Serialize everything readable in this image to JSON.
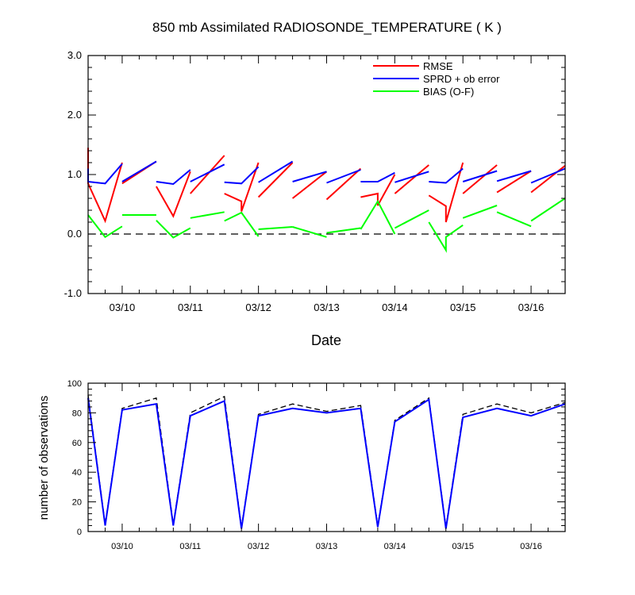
{
  "title": "850 mb Assimilated RADIOSONDE_TEMPERATURE ( K )",
  "chart_data": [
    {
      "type": "line",
      "xlabel": "Date",
      "ylabel": "",
      "xlim": [
        9.5,
        16.5
      ],
      "ylim": [
        -1.0,
        3.0
      ],
      "x_ticks": [
        10,
        11,
        12,
        13,
        14,
        15,
        16
      ],
      "x_tick_labels": [
        "03/10",
        "03/11",
        "03/12",
        "03/13",
        "03/14",
        "03/15",
        "03/16"
      ],
      "y_ticks": [
        -1.0,
        0.0,
        1.0,
        2.0,
        3.0
      ],
      "y_tick_labels": [
        "-1.0",
        "0.0",
        "1.0",
        "2.0",
        "3.0"
      ],
      "grid": false,
      "legend_position": "top-right",
      "reference_line": {
        "y": 0.0,
        "style": "dashed",
        "color": "#000000"
      },
      "series": [
        {
          "name": "RMSE",
          "color": "#ff0000",
          "segments": [
            [
              [
                9.5,
                1.45
              ],
              [
                9.5,
                0.85
              ],
              [
                9.75,
                0.22
              ],
              [
                10.0,
                1.2
              ]
            ],
            [
              [
                10.0,
                0.85
              ],
              [
                10.5,
                1.22
              ]
            ],
            [
              [
                10.5,
                0.8
              ],
              [
                10.75,
                0.3
              ],
              [
                11.0,
                1.05
              ]
            ],
            [
              [
                11.0,
                0.68
              ],
              [
                11.5,
                1.32
              ]
            ],
            [
              [
                11.5,
                0.68
              ],
              [
                11.75,
                0.55
              ],
              [
                11.75,
                0.38
              ],
              [
                12.0,
                1.2
              ]
            ],
            [
              [
                12.0,
                0.62
              ],
              [
                12.5,
                1.2
              ]
            ],
            [
              [
                12.5,
                0.6
              ],
              [
                13.0,
                1.05
              ]
            ],
            [
              [
                13.0,
                0.58
              ],
              [
                13.5,
                1.1
              ]
            ],
            [
              [
                13.5,
                0.62
              ],
              [
                13.75,
                0.68
              ],
              [
                13.75,
                0.48
              ],
              [
                14.0,
                1.0
              ]
            ],
            [
              [
                14.0,
                0.68
              ],
              [
                14.5,
                1.16
              ]
            ],
            [
              [
                14.5,
                0.65
              ],
              [
                14.75,
                0.47
              ],
              [
                14.75,
                0.2
              ],
              [
                15.0,
                1.2
              ]
            ],
            [
              [
                15.0,
                0.68
              ],
              [
                15.5,
                1.16
              ]
            ],
            [
              [
                15.5,
                0.7
              ],
              [
                16.0,
                1.06
              ]
            ],
            [
              [
                16.0,
                0.7
              ],
              [
                16.5,
                1.15
              ]
            ]
          ]
        },
        {
          "name": "SPRD + ob error",
          "color": "#0000ff",
          "segments": [
            [
              [
                9.5,
                1.1
              ],
              [
                9.5,
                0.88
              ],
              [
                9.75,
                0.85
              ],
              [
                10.0,
                1.18
              ]
            ],
            [
              [
                10.0,
                0.88
              ],
              [
                10.5,
                1.22
              ]
            ],
            [
              [
                10.5,
                0.88
              ],
              [
                10.75,
                0.84
              ],
              [
                11.0,
                1.08
              ]
            ],
            [
              [
                11.0,
                0.88
              ],
              [
                11.5,
                1.17
              ]
            ],
            [
              [
                11.5,
                0.87
              ],
              [
                11.75,
                0.85
              ],
              [
                12.0,
                1.13
              ]
            ],
            [
              [
                12.0,
                0.87
              ],
              [
                12.5,
                1.22
              ]
            ],
            [
              [
                12.5,
                0.88
              ],
              [
                13.0,
                1.05
              ]
            ],
            [
              [
                13.0,
                0.86
              ],
              [
                13.5,
                1.08
              ]
            ],
            [
              [
                13.5,
                0.88
              ],
              [
                13.75,
                0.88
              ],
              [
                14.0,
                1.03
              ]
            ],
            [
              [
                14.0,
                0.87
              ],
              [
                14.5,
                1.05
              ]
            ],
            [
              [
                14.5,
                0.88
              ],
              [
                14.75,
                0.86
              ],
              [
                15.0,
                1.1
              ]
            ],
            [
              [
                15.0,
                0.88
              ],
              [
                15.5,
                1.06
              ]
            ],
            [
              [
                15.5,
                0.89
              ],
              [
                16.0,
                1.06
              ]
            ],
            [
              [
                16.0,
                0.86
              ],
              [
                16.5,
                1.1
              ]
            ]
          ]
        },
        {
          "name": "BIAS (O-F)",
          "color": "#00ff00",
          "segments": [
            [
              [
                9.5,
                0.32
              ],
              [
                9.75,
                -0.05
              ],
              [
                10.0,
                0.13
              ]
            ],
            [
              [
                10.0,
                0.32
              ],
              [
                10.5,
                0.32
              ]
            ],
            [
              [
                10.5,
                0.23
              ],
              [
                10.75,
                -0.06
              ],
              [
                11.0,
                0.1
              ]
            ],
            [
              [
                11.0,
                0.27
              ],
              [
                11.5,
                0.37
              ]
            ],
            [
              [
                11.5,
                0.22
              ],
              [
                11.75,
                0.36
              ],
              [
                12.0,
                -0.04
              ]
            ],
            [
              [
                12.0,
                0.08
              ],
              [
                12.5,
                0.12
              ]
            ],
            [
              [
                12.5,
                0.12
              ],
              [
                13.0,
                -0.05
              ]
            ],
            [
              [
                13.0,
                0.02
              ],
              [
                13.5,
                0.1
              ]
            ],
            [
              [
                13.5,
                0.08
              ],
              [
                13.75,
                0.55
              ],
              [
                14.0,
                0.0
              ]
            ],
            [
              [
                14.0,
                0.1
              ],
              [
                14.5,
                0.4
              ]
            ],
            [
              [
                14.5,
                0.2
              ],
              [
                14.75,
                -0.27
              ],
              [
                14.75,
                -0.05
              ],
              [
                15.0,
                0.15
              ]
            ],
            [
              [
                15.0,
                0.27
              ],
              [
                15.5,
                0.48
              ]
            ],
            [
              [
                15.5,
                0.37
              ],
              [
                16.0,
                0.13
              ]
            ],
            [
              [
                16.0,
                0.22
              ],
              [
                16.5,
                0.6
              ]
            ]
          ]
        }
      ]
    },
    {
      "type": "line",
      "xlabel": "",
      "ylabel": "number of observations",
      "xlim": [
        9.5,
        16.5
      ],
      "ylim": [
        0,
        100
      ],
      "x_ticks": [
        10,
        11,
        12,
        13,
        14,
        15,
        16
      ],
      "x_tick_labels": [
        "03/10",
        "03/11",
        "03/12",
        "03/13",
        "03/14",
        "03/15",
        "03/16"
      ],
      "y_ticks": [
        0,
        20,
        40,
        60,
        80,
        100
      ],
      "y_tick_labels": [
        "0",
        "20",
        "40",
        "60",
        "80",
        "100"
      ],
      "grid": false,
      "x": [
        9.5,
        9.75,
        10.0,
        10.5,
        10.75,
        11.0,
        11.5,
        11.75,
        12.0,
        12.5,
        13.0,
        13.5,
        13.75,
        14.0,
        14.5,
        14.75,
        15.0,
        15.5,
        16.0,
        16.5
      ],
      "series": [
        {
          "color": "#000000",
          "style": "dashed",
          "values": [
            92,
            5,
            83,
            90,
            5,
            80,
            91,
            3,
            79,
            86,
            81,
            85,
            4,
            75,
            90,
            3,
            79,
            86,
            80,
            87
          ]
        },
        {
          "color": "#0000ff",
          "style": "solid",
          "values": [
            90,
            4,
            82,
            86,
            4,
            78,
            88,
            2,
            78,
            83,
            80,
            83,
            3,
            74,
            89,
            2,
            77,
            83,
            78,
            86
          ]
        }
      ]
    }
  ]
}
